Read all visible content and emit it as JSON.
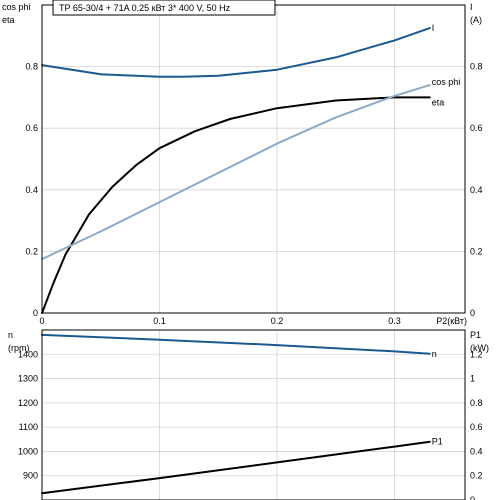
{
  "header": "TP 65-30/4 + 71A   0.25 кВт   3* 400 V, 50 Hz",
  "colors": {
    "dark_blue": "#1a5890",
    "light_blue": "#8fa9c4",
    "black": "#000000",
    "grid": "#d4d4d4"
  },
  "chart_data": [
    {
      "type": "line",
      "panel": "top",
      "xlabel": "P2(кВт)",
      "xlim": [
        0,
        0.36
      ],
      "xticks": [
        0,
        0.1,
        0.2,
        0.3
      ],
      "xtick_labels": [
        "0",
        "0.1",
        "0.2",
        "0.3"
      ],
      "left_axis": {
        "label_lines": [
          "cos phi",
          "eta"
        ],
        "ylim": [
          0,
          1.0
        ],
        "ticks": [
          0,
          0.2,
          0.4,
          0.6,
          0.8
        ],
        "tick_labels": [
          "0",
          "0.2",
          "0.4",
          "0.6",
          "0.8"
        ]
      },
      "right_axis": {
        "label_lines": [
          "I",
          "(A)"
        ],
        "ylim": [
          0,
          1.0
        ],
        "ticks": [
          0,
          0.2,
          0.4,
          0.6,
          0.8
        ],
        "tick_labels": [
          "0",
          "0.2",
          "0.4",
          "0.6",
          "0.8"
        ]
      },
      "grid": true,
      "series": [
        {
          "name": "I",
          "axis": "right",
          "color": "#1a5890",
          "x": [
            0,
            0.05,
            0.1,
            0.12,
            0.15,
            0.2,
            0.25,
            0.3,
            0.33
          ],
          "y": [
            0.805,
            0.775,
            0.767,
            0.767,
            0.77,
            0.79,
            0.83,
            0.885,
            0.925
          ]
        },
        {
          "name": "eta",
          "axis": "left",
          "color": "#000000",
          "x": [
            0,
            0.01,
            0.02,
            0.04,
            0.06,
            0.08,
            0.1,
            0.13,
            0.16,
            0.2,
            0.25,
            0.3,
            0.33
          ],
          "y": [
            0,
            0.1,
            0.19,
            0.32,
            0.41,
            0.48,
            0.535,
            0.59,
            0.63,
            0.665,
            0.69,
            0.7,
            0.7
          ]
        },
        {
          "name": "cos phi",
          "axis": "left",
          "color": "#8fa9c4",
          "x": [
            0,
            0.05,
            0.1,
            0.15,
            0.2,
            0.25,
            0.3,
            0.33
          ],
          "y": [
            0.175,
            0.265,
            0.36,
            0.455,
            0.55,
            0.635,
            0.705,
            0.74
          ]
        }
      ]
    },
    {
      "type": "line",
      "panel": "bottom",
      "xlim": [
        0,
        0.36
      ],
      "left_axis": {
        "label_lines": [
          "n",
          "(rpm)"
        ],
        "ylim": [
          800,
          1500
        ],
        "ticks": [
          900,
          1000,
          1100,
          1200,
          1300,
          1400
        ],
        "tick_labels": [
          "900",
          "1000",
          "1100",
          "1200",
          "1300",
          "1400"
        ]
      },
      "right_axis": {
        "label_lines": [
          "P1",
          "(kW)"
        ],
        "ylim": [
          0,
          1.4
        ],
        "ticks": [
          0,
          0.2,
          0.4,
          0.6,
          0.8,
          1.0,
          1.2
        ],
        "tick_labels": [
          "0",
          "0.2",
          "0.4",
          "0.6",
          "0.8",
          "1",
          "1.2"
        ]
      },
      "grid": true,
      "series": [
        {
          "name": "n",
          "axis": "left",
          "color": "#1a5890",
          "x": [
            0,
            0.1,
            0.2,
            0.3,
            0.33
          ],
          "y": [
            1480,
            1460,
            1438,
            1412,
            1402
          ]
        },
        {
          "name": "P1",
          "axis": "right",
          "color": "#000000",
          "x": [
            0,
            0.1,
            0.2,
            0.3,
            0.33
          ],
          "y": [
            0.055,
            0.18,
            0.31,
            0.44,
            0.48
          ]
        }
      ]
    }
  ]
}
